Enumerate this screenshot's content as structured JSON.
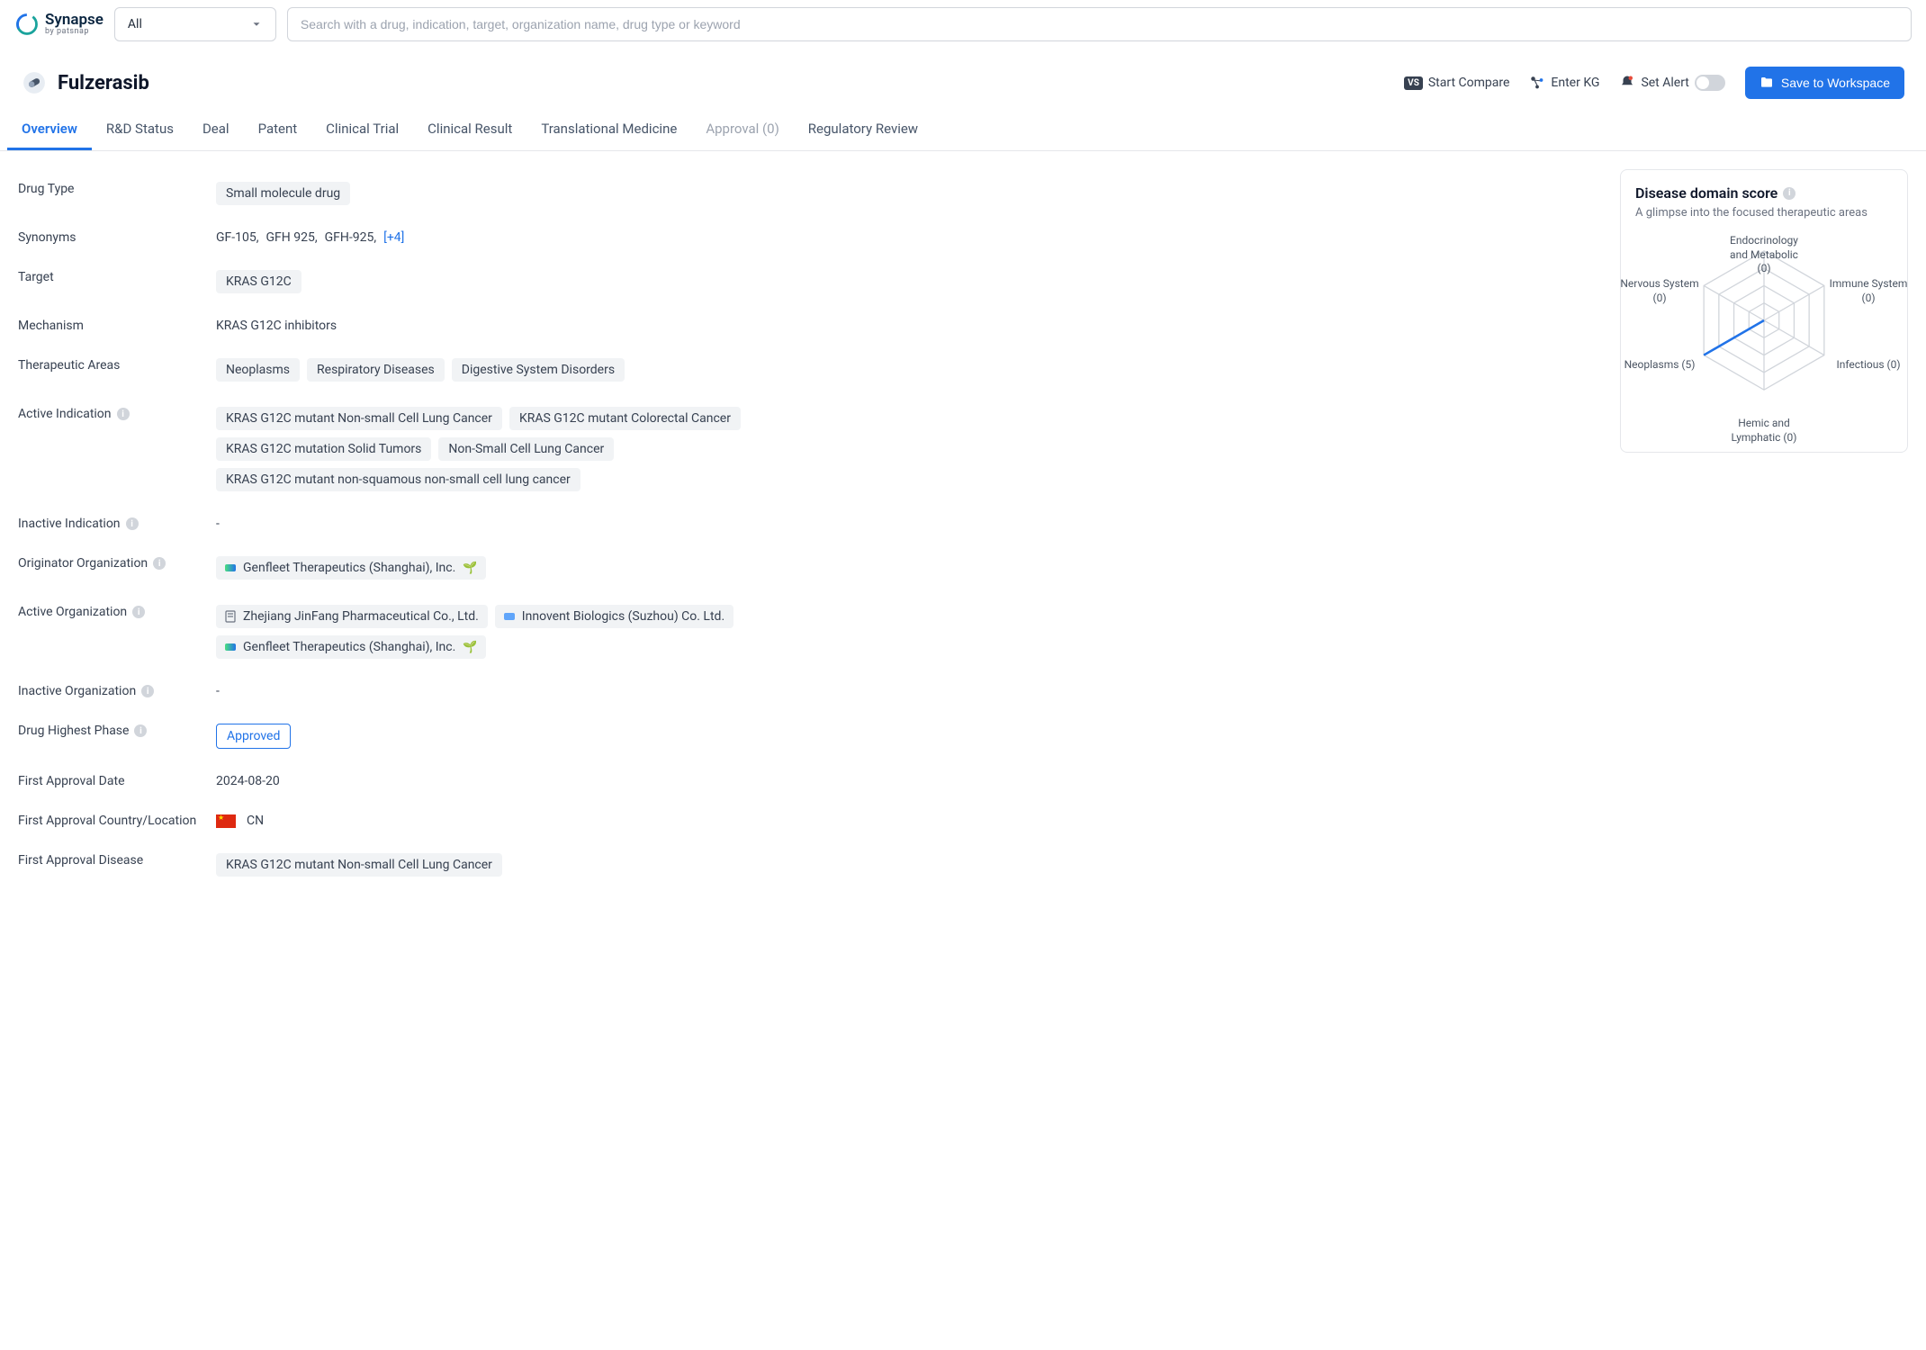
{
  "brand": {
    "name": "Synapse",
    "sub": "by patsnap"
  },
  "search": {
    "scope": "All",
    "placeholder": "Search with a drug, indication, target, organization name, drug type or keyword"
  },
  "page": {
    "title": "Fulzerasib"
  },
  "actions": {
    "compare": "Start Compare",
    "kg": "Enter KG",
    "alert": "Set Alert",
    "save": "Save to Workspace"
  },
  "tabs": [
    "Overview",
    "R&D Status",
    "Deal",
    "Patent",
    "Clinical Trial",
    "Clinical Result",
    "Translational Medicine",
    "Approval (0)",
    "Regulatory Review"
  ],
  "labels": {
    "drug_type": "Drug Type",
    "synonyms": "Synonyms",
    "target": "Target",
    "mechanism": "Mechanism",
    "therapeutic_areas": "Therapeutic Areas",
    "active_indication": "Active Indication",
    "inactive_indication": "Inactive Indication",
    "originator_org": "Originator Organization",
    "active_org": "Active Organization",
    "inactive_org": "Inactive Organization",
    "highest_phase": "Drug Highest Phase",
    "first_approval_date": "First Approval Date",
    "first_approval_country": "First Approval Country/Location",
    "first_approval_disease": "First Approval Disease"
  },
  "values": {
    "drug_type": "Small molecule drug",
    "synonyms": [
      "GF-105,",
      "GFH 925,",
      "GFH-925,"
    ],
    "synonyms_more": "[+4]",
    "target": "KRAS G12C",
    "mechanism": "KRAS G12C inhibitors",
    "therapeutic_areas": [
      "Neoplasms",
      "Respiratory Diseases",
      "Digestive System Disorders"
    ],
    "active_indications": [
      "KRAS G12C mutant Non-small Cell Lung Cancer",
      "KRAS G12C mutant Colorectal Cancer",
      "KRAS G12C mutation Solid Tumors",
      "Non-Small Cell Lung Cancer",
      "KRAS G12C mutant non-squamous non-small cell lung cancer"
    ],
    "inactive_indication": "-",
    "originator_org": "Genfleet Therapeutics (Shanghai), Inc.",
    "active_orgs": [
      "Zhejiang JinFang Pharmaceutical Co., Ltd.",
      "Innovent Biologics (Suzhou) Co. Ltd.",
      "Genfleet Therapeutics (Shanghai), Inc."
    ],
    "inactive_org": "-",
    "highest_phase": "Approved",
    "first_approval_date": "2024-08-20",
    "first_approval_country": "CN",
    "first_approval_disease": "KRAS G12C mutant Non-small Cell Lung Cancer"
  },
  "sidebar": {
    "title": "Disease domain score",
    "sub": "A glimpse into the focused therapeutic areas",
    "radar": {
      "axes": [
        {
          "label": "Endocrinology and Metabolic (0)",
          "value": 0
        },
        {
          "label": "Immune System (0)",
          "value": 0
        },
        {
          "label": "Infectious (0)",
          "value": 0
        },
        {
          "label": "Hemic and Lymphatic (0)",
          "value": 0
        },
        {
          "label": "Neoplasms (5)",
          "value": 5
        },
        {
          "label": "Nervous System (0)",
          "value": 0
        }
      ],
      "max": 5,
      "color": "#2173e8",
      "grid_color": "#d1d5db"
    }
  }
}
